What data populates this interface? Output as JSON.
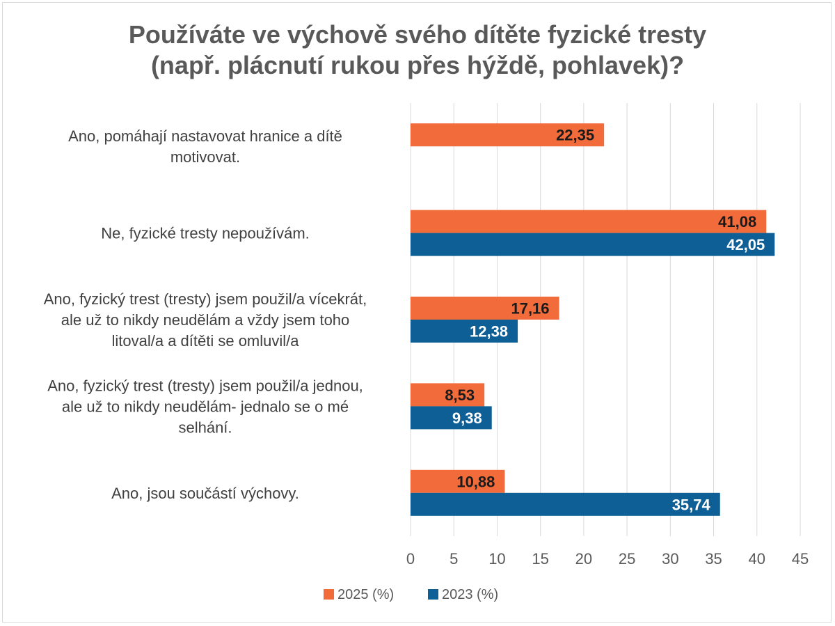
{
  "chart_data": {
    "type": "bar",
    "orientation": "horizontal",
    "title_lines": [
      "Používáte ve výchově svého dítěte fyzické tresty",
      "(např. plácnutí rukou přes hýždě, pohlavek)?"
    ],
    "categories": [
      [
        "Ano, pomáhají nastavovat hranice a dítě",
        "motivovat."
      ],
      [
        "Ne, fyzické tresty nepoužívám."
      ],
      [
        "Ano, fyzický trest (tresty) jsem použil/a vícekrát,",
        "ale už to nikdy neudělám a vždy jsem toho",
        "litoval/a a dítěti se omluvil/a"
      ],
      [
        "Ano, fyzický trest (tresty) jsem použil/a jednou,",
        "ale už to nikdy neudělám- jednalo se o mé",
        "selhání."
      ],
      [
        "Ano, jsou součástí výchovy."
      ]
    ],
    "series": [
      {
        "name": "2025 (%)",
        "color": "#f26b3a",
        "label_color": "#1a1a1a",
        "values": [
          22.35,
          41.08,
          17.16,
          8.53,
          10.88
        ],
        "labels": [
          "22,35",
          "41,08",
          "17,16",
          "8,53",
          "10,88"
        ]
      },
      {
        "name": "2023 (%)",
        "color": "#0e5f96",
        "label_color": "#ffffff",
        "values": [
          null,
          42.05,
          12.38,
          9.38,
          35.74
        ],
        "labels": [
          "",
          "42,05",
          "12,38",
          "9,38",
          "35,74"
        ]
      }
    ],
    "xlim": [
      0,
      45
    ],
    "xticks": [
      "0",
      "5",
      "10",
      "15",
      "20",
      "25",
      "30",
      "35",
      "40",
      "45"
    ],
    "grid": true,
    "legend_position": "bottom"
  }
}
